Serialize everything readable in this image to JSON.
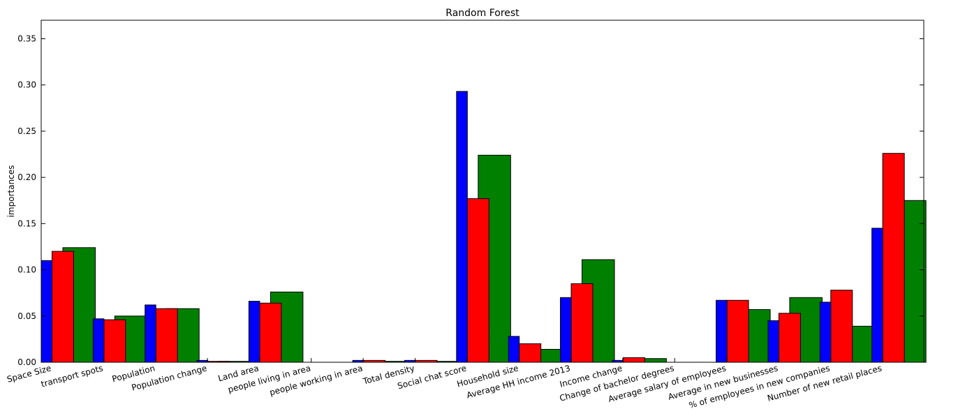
{
  "chart_data": {
    "type": "bar",
    "title": "Random Forest",
    "xlabel": "",
    "ylabel": "importances",
    "ylim": [
      0,
      0.37
    ],
    "yticks": [
      "0.00",
      "0.05",
      "0.10",
      "0.15",
      "0.20",
      "0.25",
      "0.30",
      "0.35"
    ],
    "grid": false,
    "legend": "none",
    "categories": [
      "Space Size",
      "transport spots",
      "Population",
      "Population change",
      "Land area",
      "people living in area",
      "people working in area",
      "Total density",
      "Social chat score",
      "Household size",
      "Average HH income 2013",
      "Income change",
      "Change of bachelor degrees",
      "Average salary of employees",
      "Average in new businesses",
      "% of employees in new companies",
      "Number of new retail places"
    ],
    "series": [
      {
        "color": "#0000ff",
        "values": [
          0.11,
          0.047,
          0.062,
          0.002,
          0.066,
          0.0,
          0.002,
          0.002,
          0.293,
          0.028,
          0.07,
          0.002,
          0.0,
          0.067,
          0.045,
          0.065,
          0.145
        ]
      },
      {
        "color": "#ff0000",
        "values": [
          0.12,
          0.046,
          0.058,
          0.001,
          0.064,
          0.0,
          0.002,
          0.002,
          0.177,
          0.02,
          0.085,
          0.005,
          0.0,
          0.067,
          0.053,
          0.078,
          0.226
        ]
      },
      {
        "color": "#008000",
        "values": [
          0.124,
          0.05,
          0.058,
          0.001,
          0.076,
          0.0,
          0.001,
          0.001,
          0.224,
          0.014,
          0.111,
          0.004,
          0.0,
          0.057,
          0.07,
          0.039,
          0.175
        ]
      }
    ]
  }
}
